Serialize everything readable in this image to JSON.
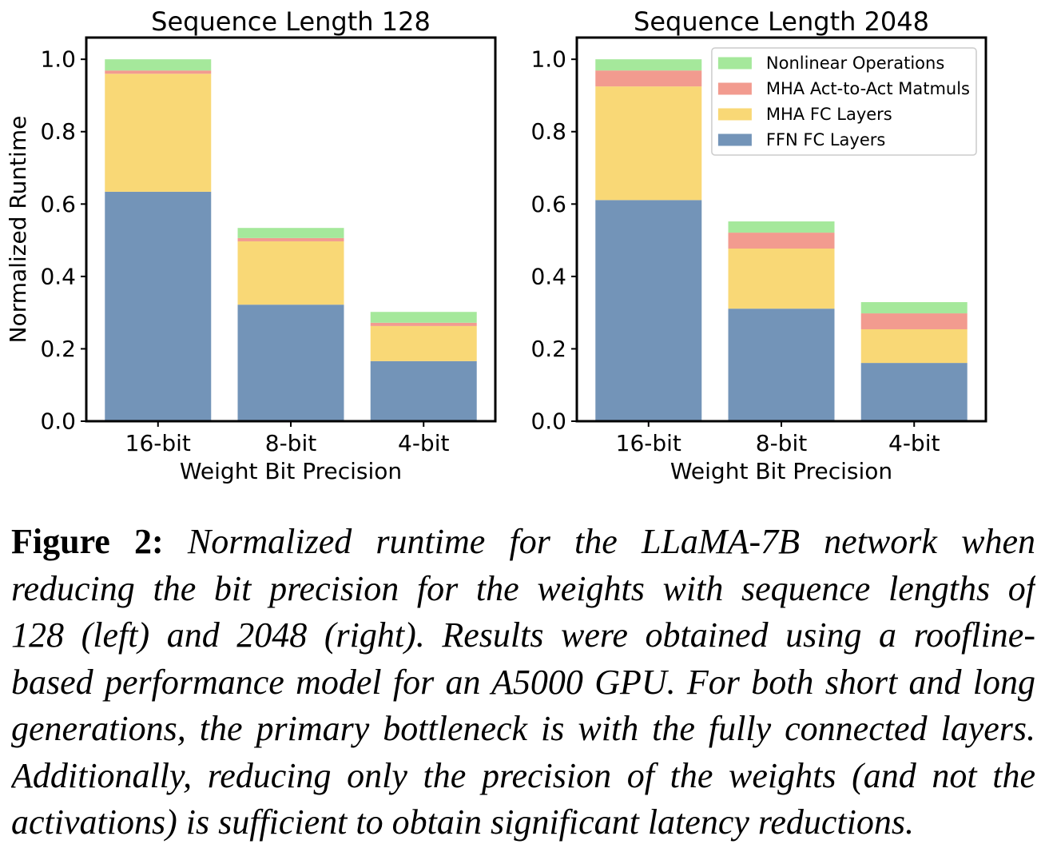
{
  "chart_data": [
    {
      "type": "bar",
      "stacked": true,
      "title": "Sequence Length 128",
      "xlabel": "Weight Bit Precision",
      "ylabel": "Normalized Runtime",
      "categories": [
        "16-bit",
        "8-bit",
        "4-bit"
      ],
      "ylim": [
        0,
        1.06
      ],
      "yticks": [
        "0.0",
        "0.2",
        "0.4",
        "0.6",
        "0.8",
        "1.0"
      ],
      "grid": false,
      "series": [
        {
          "color": "#7394b8",
          "values": [
            0.634,
            0.322,
            0.166
          ]
        },
        {
          "color": "#f9d876",
          "values": [
            0.326,
            0.175,
            0.097
          ]
        },
        {
          "color": "#f29b8f",
          "values": [
            0.009,
            0.009,
            0.009
          ]
        },
        {
          "color": "#a5e89b",
          "values": [
            0.031,
            0.028,
            0.03
          ]
        }
      ]
    },
    {
      "type": "bar",
      "stacked": true,
      "title": "Sequence Length 2048",
      "xlabel": "Weight Bit Precision",
      "categories": [
        "16-bit",
        "8-bit",
        "4-bit"
      ],
      "ylim": [
        0,
        1.06
      ],
      "yticks": [
        "0.0",
        "0.2",
        "0.4",
        "0.6",
        "0.8",
        "1.0"
      ],
      "grid": false,
      "legend": "top-right",
      "series": [
        {
          "name": "FFN FC Layers",
          "color": "#7394b8",
          "values": [
            0.611,
            0.311,
            0.161
          ]
        },
        {
          "name": "MHA FC Layers",
          "color": "#f9d876",
          "values": [
            0.314,
            0.166,
            0.093
          ]
        },
        {
          "name": "MHA Act-to-Act Matmuls",
          "color": "#f29b8f",
          "values": [
            0.044,
            0.044,
            0.044
          ]
        },
        {
          "name": "Nonlinear Operations",
          "color": "#a5e89b",
          "values": [
            0.031,
            0.031,
            0.031
          ]
        }
      ]
    }
  ],
  "caption": {
    "label": "Figure 2:",
    "lines": [
      "Normalized runtime for the LLaMA-7B network when",
      "reducing the bit precision for the weights with sequence lengths of",
      "128 (left) and 2048 (right). Results were obtained using a roofline-",
      "based performance model for an A5000 GPU. For both short and long",
      "generations, the primary bottleneck is with the fully connected layers.",
      "Additionally, reducing only the precision of the weights (and not the",
      "activations) is sufficient to obtain significant latency reductions."
    ]
  }
}
